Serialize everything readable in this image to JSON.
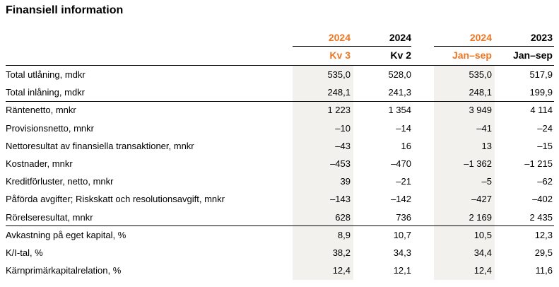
{
  "title": "Finansiell information",
  "headers": {
    "years": [
      "2024",
      "2024",
      "2024",
      "2023"
    ],
    "periods": [
      "Kv 3",
      "Kv 2",
      "Jan–sep",
      "Jan–sep"
    ],
    "colors": {
      "accent": "#ee7623",
      "shade": "#f3f1ee"
    }
  },
  "rows": [
    {
      "label": "Total utlåning, mdkr",
      "values": [
        "535,0",
        "528,0",
        "535,0",
        "517,9"
      ]
    },
    {
      "label": "Total inlåning, mdkr",
      "values": [
        "248,1",
        "241,3",
        "248,1",
        "199,9"
      ]
    },
    {
      "label": "Räntenetto, mnkr",
      "values": [
        "1 223",
        "1 354",
        "3 949",
        "4 114"
      ]
    },
    {
      "label": "Provisionsnetto, mnkr",
      "values": [
        "–10",
        "–14",
        "–41",
        "–24"
      ]
    },
    {
      "label": "Nettoresultat av finansiella transaktioner, mnkr",
      "values": [
        "–43",
        "16",
        "13",
        "–15"
      ]
    },
    {
      "label": "Kostnader, mnkr",
      "values": [
        "–453",
        "–470",
        "–1 362",
        "–1 215"
      ]
    },
    {
      "label": "Kreditförluster, netto, mnkr",
      "values": [
        "39",
        "–21",
        "–5",
        "–62"
      ]
    },
    {
      "label": "Påförda avgifter; Riskskatt och resolutionsavgift, mnkr",
      "values": [
        "–143",
        "–142",
        "–427",
        "–402"
      ]
    },
    {
      "label": "Rörelseresultat, mnkr",
      "values": [
        "628",
        "736",
        "2 169",
        "2 435"
      ]
    },
    {
      "label": "Avkastning på eget kapital, %",
      "values": [
        "8,9",
        "10,7",
        "10,5",
        "12,3"
      ]
    },
    {
      "label": "K/I-tal, %",
      "values": [
        "38,2",
        "34,3",
        "34,4",
        "29,5"
      ]
    },
    {
      "label": "Kärnprimärkapitalrelation, %",
      "values": [
        "12,4",
        "12,1",
        "12,4",
        "11,6"
      ]
    }
  ]
}
